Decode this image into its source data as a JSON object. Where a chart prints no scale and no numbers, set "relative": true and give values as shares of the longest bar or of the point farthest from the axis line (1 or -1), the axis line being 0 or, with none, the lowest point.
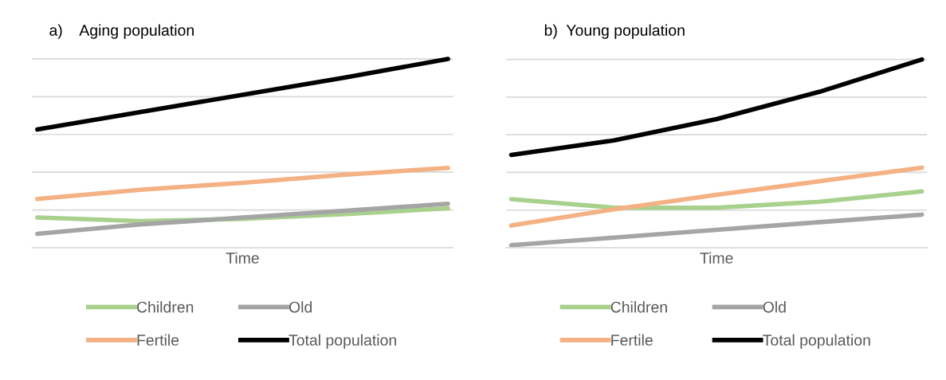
{
  "chart_data": [
    {
      "type": "line",
      "title": "a)    Aging population",
      "xlabel": "Time",
      "relative": true,
      "grid": "y",
      "legend": "bottom",
      "tick_labels": false,
      "marker": "none",
      "line_style": "solid",
      "categories": [
        null,
        null,
        null,
        null,
        null
      ],
      "series": [
        {
          "name": "Children",
          "color": "#a9d18e",
          "values": [
            0.16,
            0.141,
            0.153,
            0.178,
            0.209
          ]
        },
        {
          "name": "Fertile",
          "color": "#f4b183",
          "values": [
            0.258,
            0.307,
            0.344,
            0.387,
            0.423
          ]
        },
        {
          "name": "Old",
          "color": "#a5a5a5",
          "values": [
            0.074,
            0.123,
            0.16,
            0.196,
            0.233
          ]
        },
        {
          "name": "Total population",
          "color": "#000000",
          "values": [
            0.626,
            0.718,
            0.81,
            0.902,
            1.0
          ]
        }
      ]
    },
    {
      "type": "line",
      "title": "b)  Young population",
      "xlabel": "Time",
      "relative": true,
      "grid": "y",
      "legend": "bottom",
      "tick_labels": false,
      "marker": "none",
      "line_style": "solid",
      "categories": [
        null,
        null,
        null,
        null,
        null
      ],
      "series": [
        {
          "name": "Children",
          "color": "#a9d18e",
          "values": [
            0.258,
            0.213,
            0.213,
            0.244,
            0.299
          ]
        },
        {
          "name": "Fertile",
          "color": "#f4b183",
          "values": [
            0.118,
            0.204,
            0.281,
            0.353,
            0.425
          ]
        },
        {
          "name": "Old",
          "color": "#a5a5a5",
          "values": [
            0.014,
            0.054,
            0.095,
            0.136,
            0.176
          ]
        },
        {
          "name": "Total population",
          "color": "#000000",
          "values": [
            0.493,
            0.57,
            0.683,
            0.828,
            1.0
          ]
        }
      ]
    }
  ]
}
